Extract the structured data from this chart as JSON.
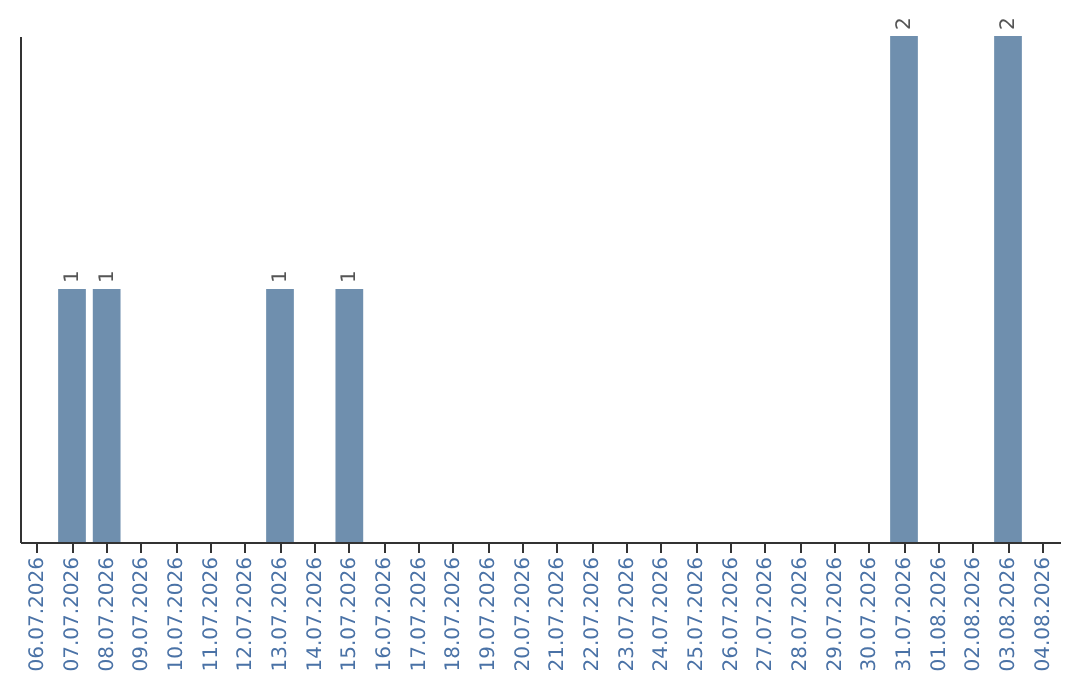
{
  "chart_data": {
    "type": "bar",
    "categories": [
      "06.07.2026",
      "07.07.2026",
      "08.07.2026",
      "09.07.2026",
      "10.07.2026",
      "11.07.2026",
      "12.07.2026",
      "13.07.2026",
      "14.07.2026",
      "15.07.2026",
      "16.07.2026",
      "17.07.2026",
      "18.07.2026",
      "19.07.2026",
      "20.07.2026",
      "21.07.2026",
      "22.07.2026",
      "23.07.2026",
      "24.07.2026",
      "25.07.2026",
      "26.07.2026",
      "27.07.2026",
      "28.07.2026",
      "29.07.2026",
      "30.07.2026",
      "31.07.2026",
      "01.08.2026",
      "02.08.2026",
      "03.08.2026",
      "04.08.2026"
    ],
    "values": [
      0,
      1,
      1,
      0,
      0,
      0,
      0,
      1,
      0,
      1,
      0,
      0,
      0,
      0,
      0,
      0,
      0,
      0,
      0,
      0,
      0,
      0,
      0,
      0,
      0,
      2,
      0,
      0,
      2,
      0
    ],
    "value_labels": [
      null,
      "1",
      "1",
      null,
      null,
      null,
      null,
      "1",
      null,
      "1",
      null,
      null,
      null,
      null,
      null,
      null,
      null,
      null,
      null,
      null,
      null,
      null,
      null,
      null,
      null,
      "2",
      null,
      null,
      "2",
      null
    ],
    "color": "#6f8fae",
    "grid": false,
    "tick_labels": "x"
  }
}
